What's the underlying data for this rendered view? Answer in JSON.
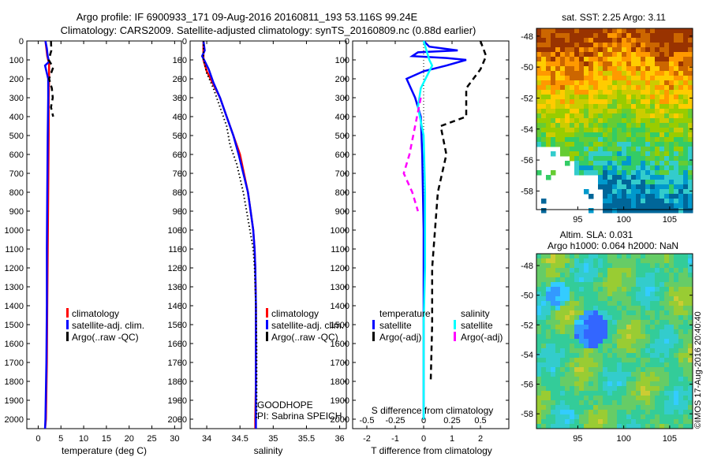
{
  "figure": {
    "title_line1": "Argo profile: IF 6900933_171 09-Aug-2016 20160811_193 53.116S 99.24E",
    "title_line2": "Climatology: CARS2009. Satellite-adjusted climatology: synTS_20160809.nc (0.88d earlier)",
    "credit": "©IMOS 17-Aug-2016 20:40:40",
    "y_ticks": [
      0,
      100,
      200,
      300,
      400,
      500,
      600,
      700,
      800,
      900,
      1000,
      1100,
      1200,
      1300,
      1400,
      1500,
      1600,
      1700,
      1800,
      1900,
      2000
    ],
    "y_range": [
      0,
      2050
    ]
  },
  "colors": {
    "climatology": "#ff0000",
    "satellite": "#0000ff",
    "argo": "#000000",
    "salinity_sat": "#00ffff",
    "salinity_argo": "#ff00ff"
  },
  "chart_data": [
    {
      "type": "line",
      "id": "temperature",
      "xlabel": "temperature (deg C)",
      "xlim": [
        -2.5,
        31.5
      ],
      "x_ticks": [
        0,
        5,
        10,
        15,
        20,
        25,
        30
      ],
      "ylim": [
        0,
        2050
      ],
      "legend": [
        "climatology",
        "satellite-adj. clim.",
        "Argo(..raw -QC)"
      ],
      "series": [
        {
          "name": "climatology",
          "color": "#ff0000",
          "style": "solid",
          "points": [
            [
              1.6,
              0
            ],
            [
              1.8,
              40
            ],
            [
              2.0,
              80
            ],
            [
              2.4,
              120
            ],
            [
              2.4,
              200
            ],
            [
              2.3,
              300
            ],
            [
              2.3,
              500
            ],
            [
              2.2,
              800
            ],
            [
              2.1,
              1100
            ],
            [
              2.0,
              1400
            ],
            [
              1.9,
              1700
            ],
            [
              1.7,
              2000
            ],
            [
              1.5,
              2050
            ]
          ]
        },
        {
          "name": "satellite-adj. clim.",
          "color": "#0000ff",
          "style": "solid",
          "points": [
            [
              1.6,
              0
            ],
            [
              1.9,
              40
            ],
            [
              2.1,
              80
            ],
            [
              2.4,
              110
            ],
            [
              1.5,
              130
            ],
            [
              2.2,
              200
            ],
            [
              2.2,
              300
            ],
            [
              2.1,
              500
            ],
            [
              2.0,
              800
            ],
            [
              1.9,
              1100
            ],
            [
              1.9,
              1400
            ],
            [
              1.8,
              1700
            ],
            [
              1.6,
              2000
            ],
            [
              1.5,
              2050
            ]
          ]
        },
        {
          "name": "Argo(..raw -QC)",
          "color": "#000000",
          "style": "dashed",
          "points": [
            [
              2.8,
              0
            ],
            [
              2.9,
              50
            ],
            [
              2.3,
              100
            ],
            [
              3.3,
              140
            ],
            [
              2.4,
              200
            ],
            [
              3.0,
              250
            ],
            [
              3.2,
              300
            ],
            [
              2.8,
              350
            ],
            [
              3.3,
              400
            ]
          ]
        }
      ]
    },
    {
      "type": "line",
      "id": "salinity",
      "xlabel": "salinity",
      "xlim": [
        33.75,
        36.1
      ],
      "x_ticks": [
        34,
        34.5,
        35,
        35.5,
        36
      ],
      "ylim": [
        0,
        2050
      ],
      "legend": [
        "climatology",
        "satellite-adj. clim.",
        "Argo(..raw -QC)"
      ],
      "series": [
        {
          "name": "climatology",
          "color": "#ff0000",
          "style": "solid",
          "points": [
            [
              33.95,
              0
            ],
            [
              33.95,
              100
            ],
            [
              34.0,
              160
            ],
            [
              34.1,
              230
            ],
            [
              34.2,
              300
            ],
            [
              34.3,
              400
            ],
            [
              34.4,
              500
            ],
            [
              34.5,
              600
            ],
            [
              34.56,
              700
            ],
            [
              34.62,
              800
            ],
            [
              34.66,
              900
            ],
            [
              34.7,
              1000
            ],
            [
              34.72,
              1100
            ],
            [
              34.73,
              1200
            ],
            [
              34.74,
              1400
            ],
            [
              34.74,
              1600
            ],
            [
              34.74,
              1800
            ],
            [
              34.73,
              2000
            ],
            [
              34.73,
              2050
            ]
          ]
        },
        {
          "name": "satellite-adj. clim.",
          "color": "#0000ff",
          "style": "solid",
          "points": [
            [
              33.95,
              0
            ],
            [
              33.97,
              50
            ],
            [
              33.93,
              80
            ],
            [
              33.96,
              100
            ],
            [
              34.03,
              150
            ],
            [
              34.1,
              220
            ],
            [
              34.2,
              300
            ],
            [
              34.3,
              400
            ],
            [
              34.4,
              500
            ],
            [
              34.48,
              600
            ],
            [
              34.55,
              700
            ],
            [
              34.62,
              800
            ],
            [
              34.66,
              900
            ],
            [
              34.7,
              1000
            ],
            [
              34.72,
              1100
            ],
            [
              34.73,
              1200
            ],
            [
              34.74,
              1400
            ],
            [
              34.74,
              1600
            ],
            [
              34.74,
              1800
            ],
            [
              34.74,
              2000
            ],
            [
              34.74,
              2050
            ]
          ]
        },
        {
          "name": "Argo(..raw -QC)",
          "color": "#000000",
          "style": "dotted",
          "points": [
            [
              33.95,
              0
            ],
            [
              33.95,
              100
            ],
            [
              34.0,
              170
            ],
            [
              34.1,
              250
            ],
            [
              34.2,
              350
            ],
            [
              34.3,
              450
            ],
            [
              34.35,
              550
            ],
            [
              34.45,
              650
            ],
            [
              34.55,
              800
            ],
            [
              34.6,
              900
            ],
            [
              34.65,
              1000
            ],
            [
              34.7,
              1100
            ],
            [
              34.72,
              1200
            ],
            [
              34.74,
              1400
            ],
            [
              34.75,
              1600
            ],
            [
              34.75,
              1800
            ],
            [
              34.75,
              2000
            ]
          ]
        }
      ],
      "annotation": [
        "GOODHOPE",
        "PI: Sabrina SPEICH"
      ]
    },
    {
      "type": "line",
      "id": "difference",
      "xlabel": "T difference from climatology",
      "xlabel_top": "S difference from climatology",
      "xlim": [
        -2.5,
        3.0
      ],
      "x_ticks": [
        -2,
        -1,
        0,
        1,
        2
      ],
      "x_ticks_top": [
        "-0.5",
        "-0.25",
        "0",
        "0.25",
        "0.5"
      ],
      "ylim": [
        0,
        2050
      ],
      "legend_headers": [
        "temperature",
        "salinity"
      ],
      "legend": [
        "satellite",
        "Argo(-adj)",
        "satellite",
        "Argo(-adj)"
      ],
      "series": [
        {
          "name": "temperature satellite",
          "color": "#0000ff",
          "style": "solid",
          "points": [
            [
              0,
              0
            ],
            [
              0.2,
              30
            ],
            [
              1.2,
              50
            ],
            [
              -0.2,
              60
            ],
            [
              -0.4,
              80
            ],
            [
              0.8,
              90
            ],
            [
              1.5,
              100
            ],
            [
              0.8,
              130
            ],
            [
              0.0,
              160
            ],
            [
              -0.6,
              200
            ],
            [
              -0.3,
              300
            ],
            [
              -0.1,
              400
            ],
            [
              -0.05,
              600
            ],
            [
              0.0,
              1000
            ],
            [
              0.0,
              1500
            ],
            [
              0.0,
              2000
            ]
          ]
        },
        {
          "name": "temperature Argo(-adj)",
          "color": "#000000",
          "style": "dashed",
          "points": [
            [
              2.0,
              0
            ],
            [
              2.2,
              80
            ],
            [
              2.0,
              150
            ],
            [
              1.5,
              250
            ],
            [
              1.5,
              400
            ],
            [
              0.6,
              450
            ],
            [
              0.8,
              600
            ],
            [
              0.5,
              800
            ],
            [
              0.4,
              1000
            ],
            [
              0.3,
              1200
            ],
            [
              0.3,
              1500
            ],
            [
              0.25,
              1800
            ]
          ]
        },
        {
          "name": "salinity satellite",
          "color": "#00ffff",
          "style": "solid",
          "points": [
            [
              0,
              0
            ],
            [
              0.1,
              50
            ],
            [
              0.2,
              100
            ],
            [
              0.3,
              130
            ],
            [
              -0.1,
              250
            ],
            [
              -0.2,
              350
            ],
            [
              0.0,
              500
            ],
            [
              0.05,
              800
            ],
            [
              0.05,
              1000
            ],
            [
              0.05,
              1200
            ],
            [
              0.0,
              1500
            ],
            [
              0.0,
              1800
            ],
            [
              0.0,
              2000
            ]
          ]
        },
        {
          "name": "salinity Argo(-adj)",
          "color": "#ff00ff",
          "style": "dashed",
          "points": [
            [
              -0.1,
              300
            ],
            [
              -0.3,
              450
            ],
            [
              -0.5,
              600
            ],
            [
              -0.7,
              700
            ],
            [
              -0.4,
              800
            ],
            [
              -0.2,
              900
            ]
          ]
        }
      ]
    }
  ],
  "maps": [
    {
      "id": "sst",
      "title": "sat. SST: 2.25  Argo: 3.11",
      "title_lines": [],
      "lat_ticks": [
        -48,
        -50,
        -52,
        -54,
        -56,
        -58
      ],
      "lon_ticks": [
        95,
        100,
        105
      ],
      "lat_range": [
        -47.5,
        -59.2
      ],
      "lon_range": [
        90.5,
        107.5
      ],
      "palette": [
        "#006699",
        "#0099cc",
        "#33cccc",
        "#33cc66",
        "#66cc33",
        "#99cc00",
        "#cccc00",
        "#ffcc00",
        "#ff9900",
        "#cc6600",
        "#993300"
      ]
    },
    {
      "id": "sla",
      "title": "",
      "title_lines": [
        "Altim. SLA: 0.031",
        "Argo h1000: 0.064 h2000: NaN"
      ],
      "lat_ticks": [
        -48,
        -50,
        -52,
        -54,
        -56,
        -58
      ],
      "lon_ticks": [
        95,
        100,
        105
      ],
      "lat_range": [
        -47.2,
        -59.0
      ],
      "lon_range": [
        90.5,
        107.5
      ],
      "palette": [
        "#3366ff",
        "#3399ff",
        "#33ccff",
        "#33cccc",
        "#33cc99",
        "#66cc66",
        "#99cc33",
        "#cccc33",
        "#ffff00"
      ]
    }
  ]
}
